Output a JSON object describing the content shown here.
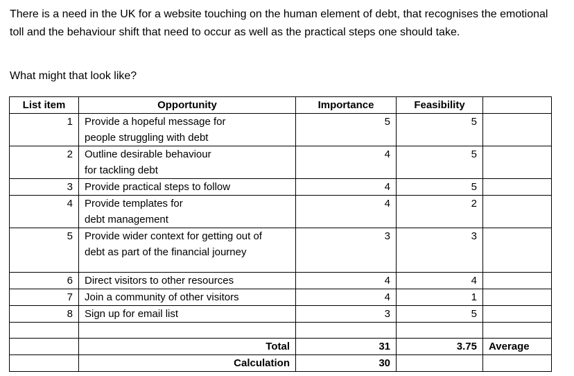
{
  "intro_text": "There is a need in the UK for a website touching on the human element of debt, that recognises the emotional toll and the behaviour shift that need to occur as well as the practical steps one should take.",
  "question_text": "What might that look like?",
  "table": {
    "headers": {
      "list_item": "List item",
      "opportunity": "Opportunity",
      "importance": "Importance",
      "feasibility": "Feasibility",
      "extra": ""
    },
    "rows": [
      {
        "item": "1",
        "opportunity_lines": [
          "Provide a hopeful message for",
          "people struggling with debt"
        ],
        "importance": "5",
        "feasibility": "5"
      },
      {
        "item": "2",
        "opportunity_lines": [
          "Outline desirable behaviour",
          "for tackling debt"
        ],
        "importance": "4",
        "feasibility": "5"
      },
      {
        "item": "3",
        "opportunity_lines": [
          "Provide practical steps to follow"
        ],
        "importance": "4",
        "feasibility": "5"
      },
      {
        "item": "4",
        "opportunity_lines": [
          "Provide templates for",
          "debt management"
        ],
        "importance": "4",
        "feasibility": "2"
      },
      {
        "item": "5",
        "opportunity_lines": [
          "Provide wider context for getting out of",
          "debt as part of the financial journey"
        ],
        "importance": "3",
        "feasibility": "3"
      },
      {
        "item": "6",
        "opportunity_lines": [
          "Direct visitors to other resources"
        ],
        "importance": "4",
        "feasibility": "4"
      },
      {
        "item": "7",
        "opportunity_lines": [
          "Join a community of other visitors"
        ],
        "importance": "4",
        "feasibility": "1"
      },
      {
        "item": "8",
        "opportunity_lines": [
          "Sign up for email list"
        ],
        "importance": "3",
        "feasibility": "5"
      }
    ],
    "total": {
      "label": "Total",
      "importance": "31",
      "feasibility": "3.75",
      "extra": "Average"
    },
    "calculation": {
      "label": "Calculation",
      "importance": "30"
    }
  }
}
